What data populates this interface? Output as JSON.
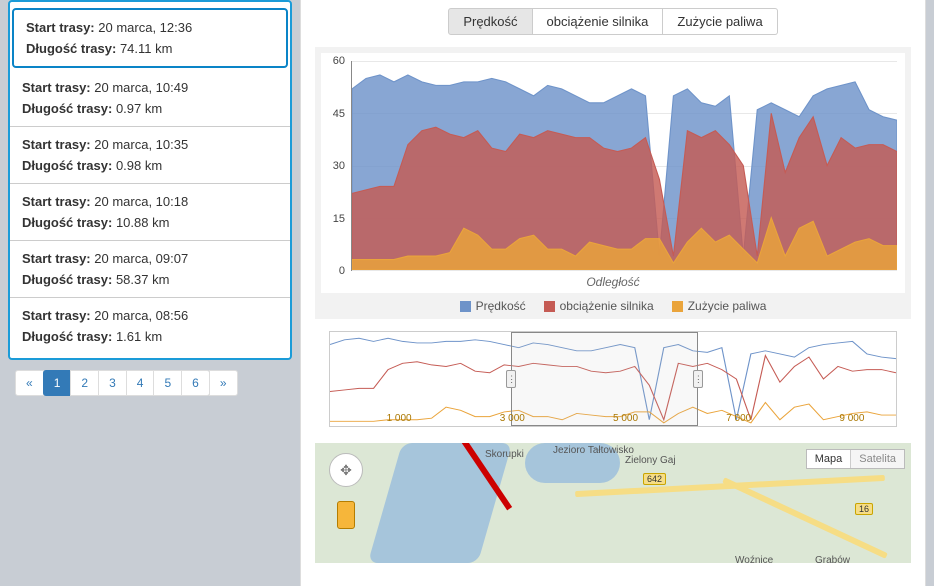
{
  "routes": {
    "label_start": "Start trasy:",
    "label_length": "Długość trasy:",
    "items": [
      {
        "start": "20 marca, 12:36",
        "length": "74.11 km"
      },
      {
        "start": "20 marca, 10:49",
        "length": "0.97 km"
      },
      {
        "start": "20 marca, 10:35",
        "length": "0.98 km"
      },
      {
        "start": "20 marca, 10:18",
        "length": "10.88 km"
      },
      {
        "start": "20 marca, 09:07",
        "length": "58.37 km"
      },
      {
        "start": "20 marca, 08:56",
        "length": "1.61 km"
      }
    ],
    "selected_index": 0
  },
  "pagination": {
    "prev": "«",
    "pages": [
      "1",
      "2",
      "3",
      "4",
      "5",
      "6"
    ],
    "next": "»",
    "active": "1"
  },
  "toggles": {
    "items": [
      "Prędkość",
      "obciążenie silnika",
      "Zużycie paliwa"
    ],
    "active_index": 0
  },
  "chart": {
    "type": "area",
    "ylim": [
      0,
      60
    ],
    "yticks": [
      0,
      15,
      30,
      45,
      60
    ],
    "xlabel": "Odległość",
    "colors": {
      "speed": "#6e93c9",
      "load": "#c55b54",
      "fuel": "#eaa43b",
      "grid": "#e8e8e8",
      "bg": "#ffffff"
    },
    "legend": {
      "speed": "Prędkość",
      "load": "obciążenie silnika",
      "fuel": "Zużycie paliwa"
    },
    "speed": [
      52,
      55,
      56,
      54,
      56,
      54,
      53,
      53,
      54,
      54,
      55,
      54,
      52,
      50,
      53,
      52,
      50,
      48,
      48,
      50,
      52,
      50,
      4,
      50,
      52,
      48,
      47,
      50,
      4,
      46,
      48,
      46,
      44,
      50,
      52,
      53,
      54,
      46,
      44,
      43
    ],
    "load": [
      22,
      23,
      24,
      24,
      36,
      40,
      41,
      39,
      38,
      40,
      35,
      34,
      39,
      38,
      40,
      39,
      38,
      38,
      35,
      34,
      35,
      38,
      26,
      4,
      40,
      38,
      40,
      36,
      30,
      4,
      45,
      28,
      38,
      44,
      30,
      38,
      35,
      36,
      36,
      34
    ],
    "fuel": [
      3,
      3,
      3,
      3,
      4,
      4,
      4,
      5,
      12,
      10,
      6,
      6,
      9,
      10,
      6,
      6,
      4,
      8,
      7,
      6,
      6,
      9,
      9,
      2,
      8,
      12,
      8,
      10,
      6,
      2,
      15,
      4,
      12,
      14,
      4,
      6,
      8,
      9,
      7,
      7
    ]
  },
  "navigator": {
    "ticks": [
      "1 000",
      "3 000",
      "5 000",
      "7 000",
      "9 000"
    ],
    "viewport": {
      "left_pct": 32,
      "right_pct": 65
    },
    "colors": {
      "speed": "#6e93c9",
      "load": "#c55b54",
      "fuel": "#eaa43b"
    }
  },
  "map": {
    "type_labels": {
      "map": "Mapa",
      "sat": "Satelita"
    },
    "places": [
      "Skorupki",
      "Jezioro Tałtowisko",
      "Zielony Gaj",
      "Grabów",
      "Woźnice",
      "642",
      "16"
    ]
  }
}
